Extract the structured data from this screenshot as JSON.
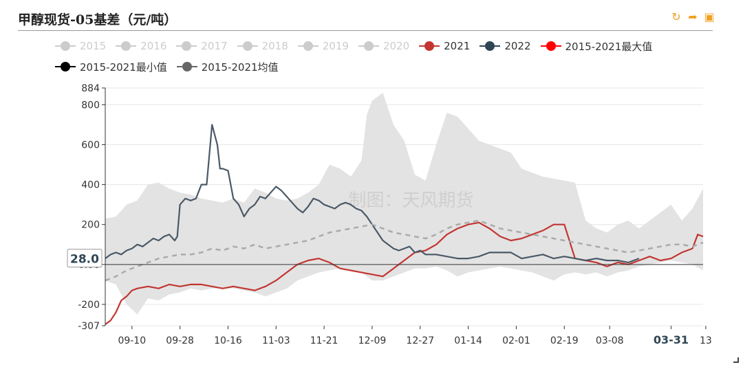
{
  "title": "甲醇现货-05基差（元/吨）",
  "toolbox": {
    "refresh_icon": "↻",
    "share_icon": "➦",
    "save_icon": "▣"
  },
  "watermark": "制图：天风期货",
  "axis_pointer_label": "28.0",
  "legend_rows": [
    [
      {
        "name": "2015",
        "color": "#cccccc",
        "inactive": true
      },
      {
        "name": "2016",
        "color": "#cccccc",
        "inactive": true
      },
      {
        "name": "2017",
        "color": "#cccccc",
        "inactive": true
      },
      {
        "name": "2018",
        "color": "#cccccc",
        "inactive": true
      },
      {
        "name": "2019",
        "color": "#cccccc",
        "inactive": true
      },
      {
        "name": "2020",
        "color": "#cccccc",
        "inactive": true
      },
      {
        "name": "2021",
        "color": "#c23531",
        "inactive": false
      },
      {
        "name": "2022",
        "color": "#2f4554",
        "inactive": false
      },
      {
        "name": "2015-2021最大值",
        "color": "#ff0000",
        "inactive": false
      }
    ],
    [
      {
        "name": "2015-2021最小值",
        "color": "#000000",
        "inactive": false
      },
      {
        "name": "2015-2021均值",
        "color": "#666666",
        "inactive": false
      }
    ]
  ],
  "chart_data": {
    "type": "line",
    "xlabel": "",
    "ylabel": "",
    "ylim": [
      -307,
      884
    ],
    "y_ticks": [
      -307,
      -200,
      0,
      200,
      400,
      600,
      800,
      884
    ],
    "y_tick_labels": [
      "-307",
      "-200",
      "0.00",
      "200",
      "400",
      "600",
      "800",
      "884"
    ],
    "x_range": [
      0,
      224
    ],
    "x_ticks": [
      {
        "label": "09-10",
        "x": 10,
        "bold": false
      },
      {
        "label": "09-28",
        "x": 28,
        "bold": false
      },
      {
        "label": "10-16",
        "x": 46,
        "bold": false
      },
      {
        "label": "11-03",
        "x": 64,
        "bold": false
      },
      {
        "label": "11-21",
        "x": 82,
        "bold": false
      },
      {
        "label": "12-09",
        "x": 100,
        "bold": false
      },
      {
        "label": "12-27",
        "x": 118,
        "bold": false
      },
      {
        "label": "01-14",
        "x": 136,
        "bold": false
      },
      {
        "label": "02-01",
        "x": 154,
        "bold": false
      },
      {
        "label": "02-19",
        "x": 172,
        "bold": false
      },
      {
        "label": "03-08",
        "x": 189,
        "bold": false
      },
      {
        "label": "03-31",
        "x": 212,
        "bold": true
      },
      {
        "label": "13",
        "x": 225,
        "bold": false
      }
    ],
    "band": {
      "name": "2015-2021 range",
      "x": [
        0,
        4,
        8,
        12,
        16,
        20,
        24,
        28,
        32,
        36,
        40,
        44,
        48,
        52,
        56,
        60,
        64,
        68,
        72,
        76,
        80,
        84,
        88,
        92,
        96,
        98,
        100,
        104,
        108,
        112,
        116,
        120,
        124,
        128,
        132,
        136,
        140,
        144,
        148,
        152,
        156,
        160,
        164,
        168,
        172,
        176,
        180,
        184,
        188,
        192,
        196,
        200,
        204,
        208,
        212,
        216,
        220,
        224
      ],
      "upper": [
        230,
        240,
        300,
        320,
        400,
        410,
        380,
        360,
        350,
        330,
        320,
        310,
        330,
        310,
        380,
        360,
        330,
        320,
        330,
        360,
        400,
        500,
        480,
        440,
        520,
        750,
        820,
        860,
        700,
        620,
        450,
        420,
        600,
        760,
        740,
        680,
        620,
        600,
        580,
        560,
        480,
        460,
        440,
        430,
        420,
        410,
        220,
        180,
        160,
        200,
        220,
        180,
        220,
        260,
        300,
        220,
        280,
        380
      ],
      "lower": [
        -80,
        -100,
        -200,
        -250,
        -170,
        -180,
        -150,
        -140,
        -120,
        -130,
        -120,
        -120,
        -120,
        -130,
        -140,
        -160,
        -140,
        -120,
        -80,
        -60,
        -40,
        -30,
        -20,
        -30,
        -40,
        -60,
        -80,
        -80,
        -60,
        -40,
        -20,
        -20,
        -10,
        -30,
        -60,
        -40,
        -30,
        -20,
        -10,
        -20,
        -30,
        -40,
        -60,
        -80,
        -50,
        -40,
        -50,
        -40,
        -60,
        -40,
        -30,
        -10,
        0,
        10,
        20,
        10,
        0,
        -30
      ]
    },
    "series": [
      {
        "name": "2021",
        "color": "#c23531",
        "dashed": false,
        "x": [
          0,
          2,
          4,
          6,
          8,
          10,
          12,
          16,
          20,
          24,
          28,
          32,
          36,
          40,
          44,
          48,
          52,
          56,
          60,
          64,
          68,
          72,
          76,
          80,
          84,
          88,
          92,
          96,
          100,
          104,
          108,
          112,
          116,
          120,
          124,
          128,
          132,
          136,
          140,
          144,
          148,
          152,
          156,
          160,
          164,
          168,
          172,
          176,
          180,
          184,
          188,
          192,
          196,
          200,
          204,
          208,
          212,
          216,
          220,
          222,
          224
        ],
        "y": [
          -300,
          -280,
          -240,
          -180,
          -160,
          -130,
          -120,
          -110,
          -120,
          -100,
          -110,
          -100,
          -100,
          -110,
          -120,
          -110,
          -120,
          -130,
          -110,
          -80,
          -40,
          0,
          20,
          30,
          10,
          -20,
          -30,
          -40,
          -50,
          -60,
          -20,
          20,
          60,
          70,
          100,
          150,
          180,
          200,
          210,
          180,
          140,
          120,
          130,
          150,
          170,
          200,
          200,
          30,
          20,
          10,
          -10,
          10,
          0,
          20,
          40,
          20,
          30,
          60,
          80,
          150,
          140
        ]
      },
      {
        "name": "2022",
        "color": "#4a5866",
        "dashed": false,
        "x": [
          0,
          2,
          4,
          6,
          8,
          10,
          12,
          14,
          16,
          18,
          20,
          22,
          24,
          26,
          27,
          28,
          30,
          32,
          34,
          36,
          38,
          40,
          42,
          43,
          44,
          46,
          48,
          50,
          52,
          54,
          56,
          58,
          60,
          62,
          64,
          66,
          68,
          70,
          72,
          74,
          76,
          78,
          80,
          82,
          84,
          86,
          88,
          90,
          92,
          94,
          96,
          98,
          100,
          102,
          104,
          106,
          108,
          110,
          112,
          114,
          116,
          118,
          120,
          124,
          128,
          132,
          136,
          140,
          144,
          148,
          152,
          156,
          160,
          164,
          168,
          172,
          176,
          180,
          184,
          188,
          192,
          196,
          200
        ],
        "y": [
          30,
          50,
          60,
          50,
          70,
          80,
          100,
          90,
          110,
          130,
          120,
          140,
          150,
          120,
          140,
          300,
          330,
          320,
          330,
          400,
          400,
          700,
          600,
          480,
          480,
          470,
          330,
          300,
          240,
          280,
          300,
          340,
          330,
          360,
          390,
          370,
          340,
          310,
          280,
          260,
          290,
          330,
          320,
          300,
          290,
          280,
          300,
          310,
          300,
          280,
          270,
          240,
          200,
          160,
          120,
          100,
          80,
          70,
          80,
          90,
          60,
          70,
          50,
          50,
          40,
          30,
          30,
          40,
          60,
          60,
          60,
          30,
          40,
          50,
          30,
          40,
          30,
          20,
          30,
          20,
          20,
          10,
          30
        ]
      },
      {
        "name": "2015-2021均值",
        "color": "#aaaaaa",
        "dashed": true,
        "x": [
          0,
          4,
          8,
          12,
          16,
          20,
          24,
          28,
          32,
          36,
          40,
          44,
          48,
          52,
          56,
          60,
          64,
          68,
          72,
          76,
          80,
          84,
          88,
          92,
          96,
          100,
          104,
          108,
          112,
          116,
          120,
          124,
          128,
          132,
          136,
          140,
          144,
          148,
          152,
          156,
          160,
          164,
          168,
          172,
          176,
          180,
          184,
          188,
          192,
          196,
          200,
          204,
          208,
          212,
          216,
          220,
          224
        ],
        "y": [
          -80,
          -60,
          -30,
          -10,
          10,
          30,
          40,
          50,
          50,
          60,
          80,
          70,
          90,
          80,
          100,
          80,
          90,
          100,
          110,
          120,
          140,
          160,
          170,
          180,
          190,
          200,
          180,
          160,
          150,
          140,
          130,
          150,
          180,
          200,
          210,
          220,
          200,
          180,
          170,
          160,
          150,
          140,
          130,
          120,
          110,
          100,
          90,
          80,
          70,
          60,
          70,
          80,
          90,
          100,
          100,
          90,
          110
        ]
      }
    ]
  }
}
